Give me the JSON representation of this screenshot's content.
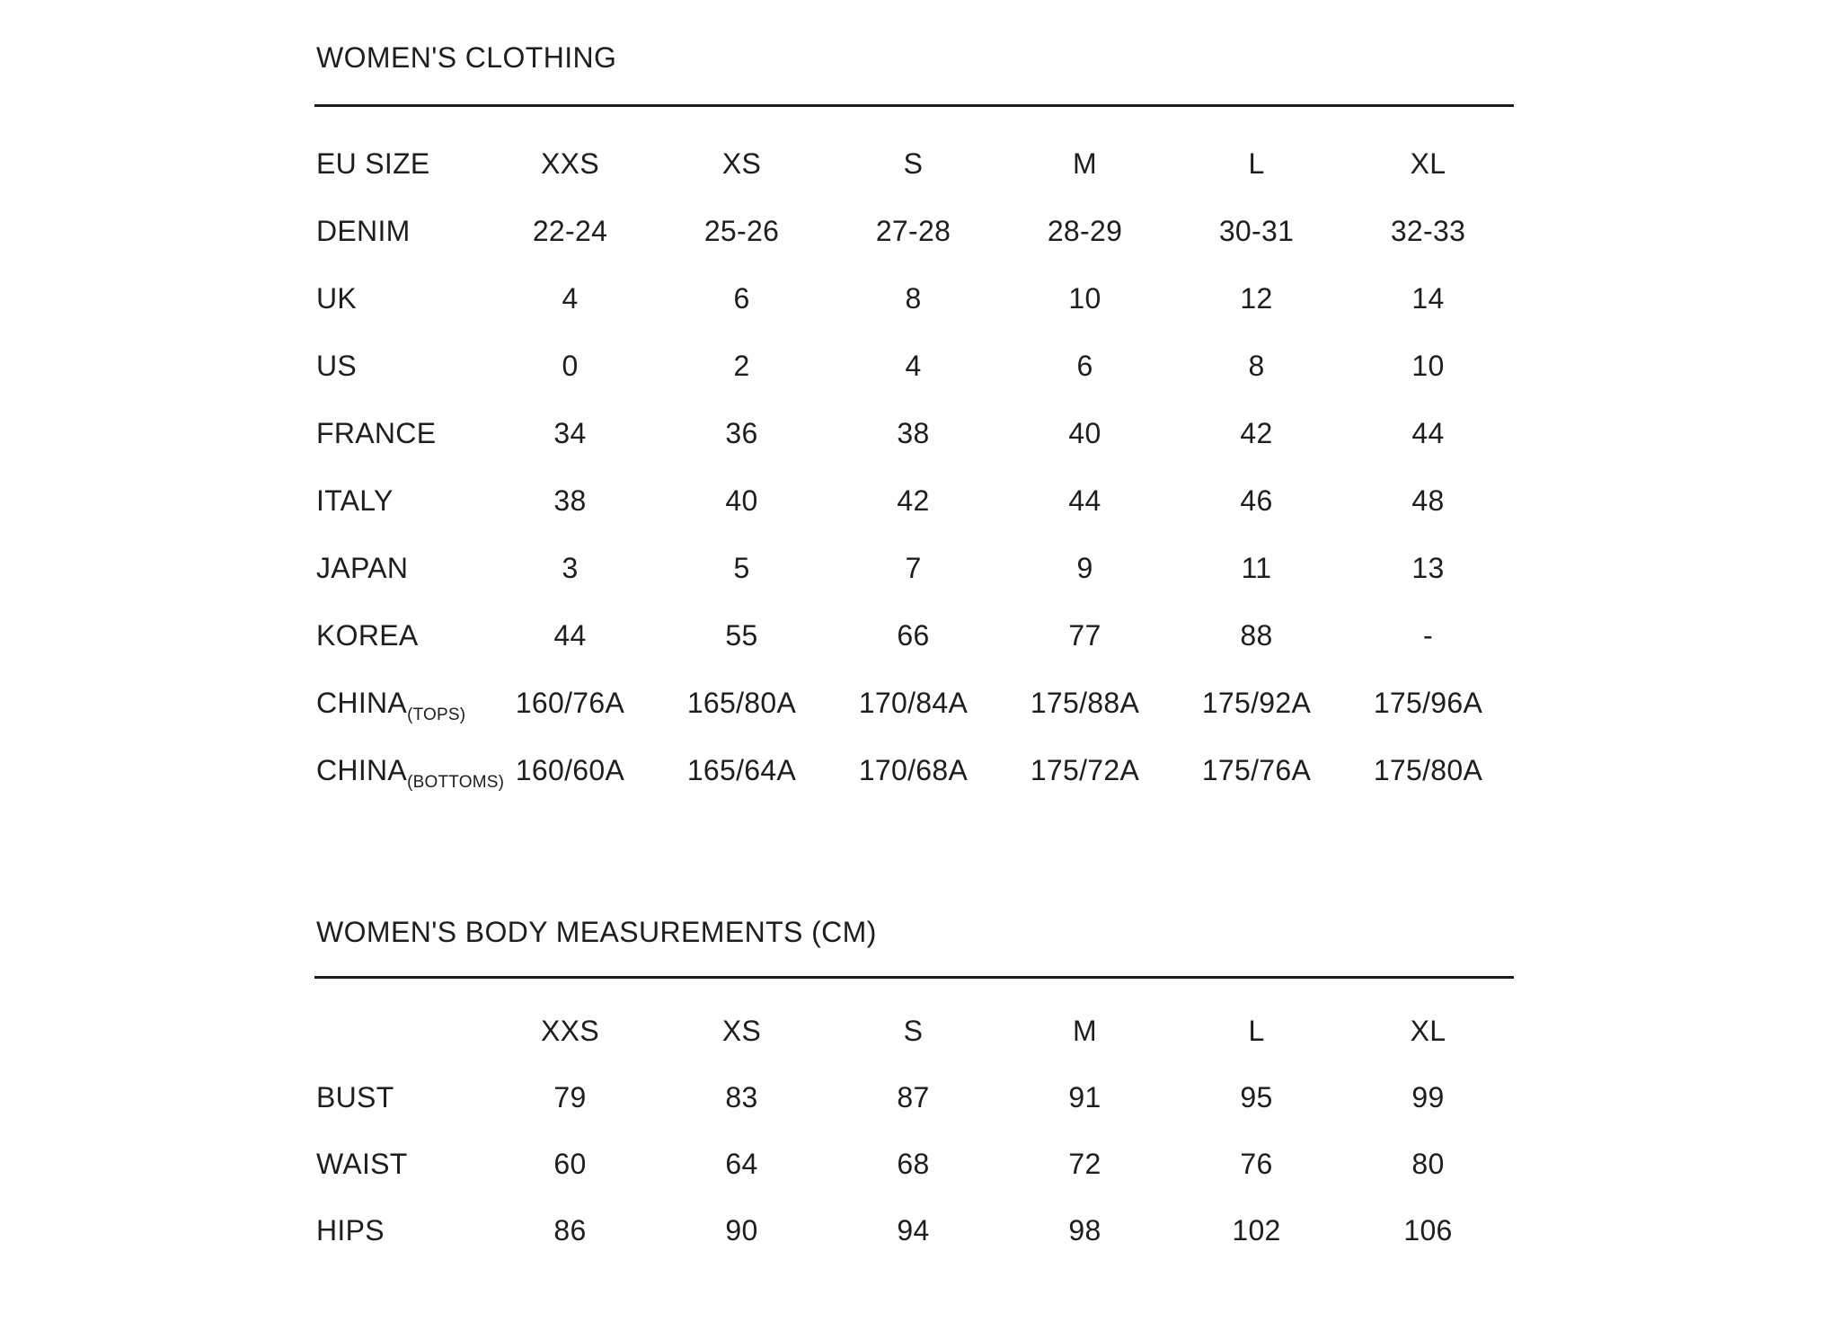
{
  "page": {
    "background": "#fefefe",
    "text_color": "#1e1e1e",
    "rule_color": "#1c1c1c"
  },
  "size_chart": {
    "title": "WOMEN'S CLOTHING",
    "header_label": "EU SIZE",
    "columns": [
      "XXS",
      "XS",
      "S",
      "M",
      "L",
      "XL"
    ],
    "rows": [
      {
        "label": "DENIM",
        "label_suffix": "",
        "values": [
          "22-24",
          "25-26",
          "27-28",
          "28-29",
          "30-31",
          "32-33"
        ]
      },
      {
        "label": "UK",
        "label_suffix": "",
        "values": [
          "4",
          "6",
          "8",
          "10",
          "12",
          "14"
        ]
      },
      {
        "label": "US",
        "label_suffix": "",
        "values": [
          "0",
          "2",
          "4",
          "6",
          "8",
          "10"
        ]
      },
      {
        "label": "FRANCE",
        "label_suffix": "",
        "values": [
          "34",
          "36",
          "38",
          "40",
          "42",
          "44"
        ]
      },
      {
        "label": "ITALY",
        "label_suffix": "",
        "values": [
          "38",
          "40",
          "42",
          "44",
          "46",
          "48"
        ]
      },
      {
        "label": "JAPAN",
        "label_suffix": "",
        "values": [
          "3",
          "5",
          "7",
          "9",
          "11",
          "13"
        ]
      },
      {
        "label": "KOREA",
        "label_suffix": "",
        "values": [
          "44",
          "55",
          "66",
          "77",
          "88",
          "-"
        ]
      },
      {
        "label": "CHINA",
        "label_suffix": "(TOPS)",
        "values": [
          "160/76A",
          "165/80A",
          "170/84A",
          "175/88A",
          "175/92A",
          "175/96A"
        ]
      },
      {
        "label": "CHINA",
        "label_suffix": "(BOTTOMS)",
        "values": [
          "160/60A",
          "165/64A",
          "170/68A",
          "175/72A",
          "175/76A",
          "175/80A"
        ]
      }
    ]
  },
  "body_measurements": {
    "title": "WOMEN'S BODY MEASUREMENTS (CM)",
    "header_label": "",
    "columns": [
      "XXS",
      "XS",
      "S",
      "M",
      "L",
      "XL"
    ],
    "rows": [
      {
        "label": "BUST",
        "label_suffix": "",
        "values": [
          "79",
          "83",
          "87",
          "91",
          "95",
          "99"
        ]
      },
      {
        "label": "WAIST",
        "label_suffix": "",
        "values": [
          "60",
          "64",
          "68",
          "72",
          "76",
          "80"
        ]
      },
      {
        "label": "HIPS",
        "label_suffix": "",
        "values": [
          "86",
          "90",
          "94",
          "98",
          "102",
          "106"
        ]
      }
    ]
  }
}
